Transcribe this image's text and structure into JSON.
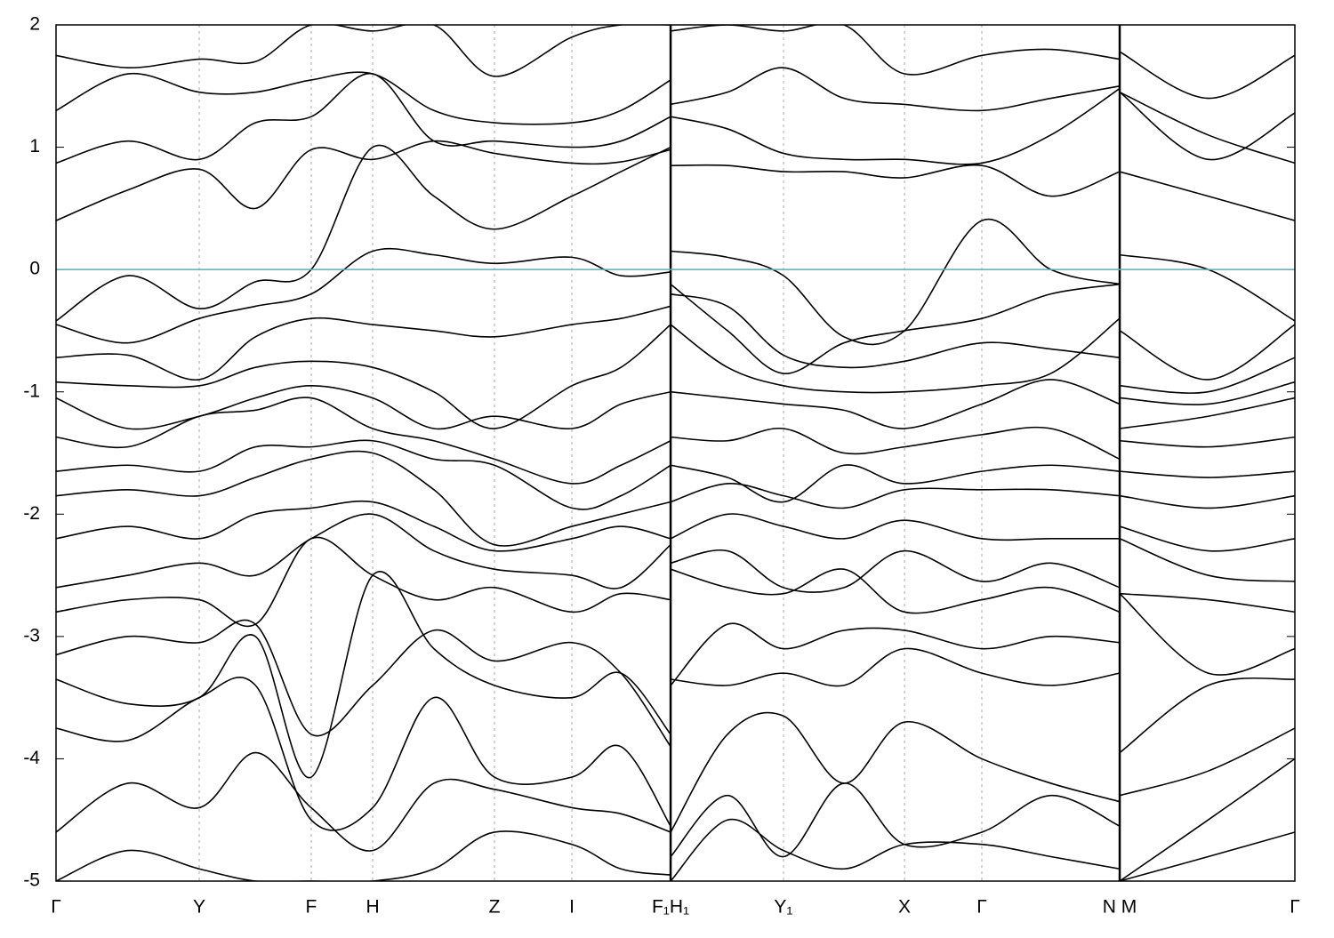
{
  "chart_data": {
    "type": "line",
    "x": [
      0,
      0.058,
      0.1156,
      0.161,
      0.206,
      0.2556,
      0.305,
      0.3539,
      0.4164,
      0.456,
      0.4961,
      0.4961,
      0.542,
      0.5872,
      0.636,
      0.6849,
      0.7473,
      0.803,
      0.8586,
      0.8586,
      0.93,
      1.0
    ],
    "xlim": [
      0,
      1.0
    ],
    "xticks": [
      {
        "value": 0,
        "label": "Γ"
      },
      {
        "value": 0.1156,
        "label": "Y"
      },
      {
        "value": 0.206,
        "label": "F"
      },
      {
        "value": 0.2556,
        "label": "H"
      },
      {
        "value": 0.3539,
        "label": "Z"
      },
      {
        "value": 0.4164,
        "label": "I"
      },
      {
        "value": 0.4961,
        "label": "F₁H₁"
      },
      {
        "value": 0.5872,
        "label": "Y₁"
      },
      {
        "value": 0.6849,
        "label": "X"
      },
      {
        "value": 0.7473,
        "label": "Γ"
      },
      {
        "value": 0.8586,
        "label": "N M"
      },
      {
        "value": 1.0,
        "label": "Γ"
      }
    ],
    "ylim": [
      -5,
      2
    ],
    "yticks": [
      2,
      1,
      0,
      -1,
      -2,
      -3,
      -4,
      -5
    ],
    "xgrid": true,
    "fermi_level": 0,
    "fermi_color": "#5aaec8",
    "color": "#000000",
    "series": [
      {
        "values": [
          1.75,
          1.65,
          1.72,
          1.7,
          2.0,
          1.95,
          2.0,
          1.58,
          1.9,
          2.0,
          2.0,
          1.95,
          2.0,
          1.95,
          2.0,
          1.6,
          1.75,
          1.8,
          1.72,
          1.78,
          1.4,
          1.75
        ]
      },
      {
        "values": [
          1.3,
          1.6,
          1.45,
          1.45,
          1.55,
          1.6,
          1.3,
          1.2,
          1.2,
          1.3,
          1.55,
          1.35,
          1.45,
          1.65,
          1.4,
          1.35,
          1.3,
          1.4,
          1.5,
          1.45,
          0.9,
          1.28
        ]
      },
      {
        "values": [
          0.87,
          1.05,
          0.9,
          1.2,
          1.25,
          1.6,
          1.05,
          1.05,
          1.0,
          1.05,
          1.25,
          1.25,
          1.15,
          0.95,
          0.9,
          0.9,
          0.87,
          1.1,
          1.48,
          1.45,
          1.1,
          0.87
        ]
      },
      {
        "values": [
          0.4,
          0.65,
          0.82,
          0.5,
          0.98,
          0.9,
          1.05,
          0.95,
          0.87,
          0.88,
          0.98,
          0.85,
          0.85,
          0.8,
          0.8,
          0.75,
          0.85,
          0.6,
          0.8,
          0.8,
          0.6,
          0.4
        ]
      },
      {
        "values": [
          -0.42,
          -0.05,
          -0.32,
          -0.1,
          0.0,
          1.0,
          0.6,
          0.33,
          0.6,
          0.8,
          1.0,
          0.15,
          0.1,
          -0.05,
          -0.55,
          -0.5,
          0.4,
          0.0,
          -0.12,
          0.12,
          0.0,
          -0.42
        ]
      },
      {
        "values": [
          -0.45,
          -0.6,
          -0.4,
          -0.3,
          -0.2,
          0.15,
          0.12,
          0.05,
          0.1,
          -0.05,
          -0.02,
          -0.12,
          -0.5,
          -0.85,
          -0.6,
          -0.5,
          -0.4,
          -0.2,
          -0.12,
          -0.5,
          -0.9,
          -0.45
        ]
      },
      {
        "values": [
          -0.72,
          -0.7,
          -0.9,
          -0.55,
          -0.4,
          -0.45,
          -0.5,
          -0.55,
          -0.45,
          -0.4,
          -0.3,
          -0.2,
          -0.3,
          -0.7,
          -0.8,
          -0.75,
          -0.6,
          -0.65,
          -0.72,
          -0.95,
          -1.0,
          -0.72
        ]
      },
      {
        "values": [
          -0.92,
          -0.95,
          -0.95,
          -0.8,
          -0.75,
          -0.8,
          -1.0,
          -1.3,
          -0.95,
          -0.8,
          -0.45,
          -0.45,
          -0.8,
          -0.95,
          -1.0,
          -1.0,
          -0.95,
          -0.85,
          -0.4,
          -1.05,
          -1.1,
          -0.92
        ]
      },
      {
        "values": [
          -1.05,
          -1.3,
          -1.2,
          -1.05,
          -0.95,
          -1.05,
          -1.3,
          -1.2,
          -1.3,
          -1.1,
          -1.0,
          -1.0,
          -1.05,
          -1.1,
          -1.15,
          -1.3,
          -1.1,
          -0.9,
          -1.1,
          -1.3,
          -1.2,
          -1.05
        ]
      },
      {
        "values": [
          -1.37,
          -1.45,
          -1.2,
          -1.15,
          -1.05,
          -1.3,
          -1.4,
          -1.55,
          -1.75,
          -1.6,
          -1.4,
          -1.37,
          -1.4,
          -1.3,
          -1.5,
          -1.45,
          -1.35,
          -1.3,
          -1.55,
          -1.4,
          -1.45,
          -1.37
        ]
      },
      {
        "values": [
          -1.65,
          -1.6,
          -1.65,
          -1.45,
          -1.45,
          -1.4,
          -1.55,
          -1.6,
          -1.95,
          -1.85,
          -1.6,
          -1.6,
          -1.7,
          -1.9,
          -1.6,
          -1.75,
          -1.65,
          -1.6,
          -1.65,
          -1.65,
          -1.7,
          -1.65
        ]
      },
      {
        "values": [
          -1.85,
          -1.8,
          -1.85,
          -1.7,
          -1.55,
          -1.5,
          -1.8,
          -2.25,
          -2.1,
          -2.0,
          -1.9,
          -1.9,
          -1.75,
          -1.85,
          -1.95,
          -1.8,
          -1.8,
          -1.8,
          -1.85,
          -1.85,
          -1.95,
          -1.85
        ]
      },
      {
        "values": [
          -2.2,
          -2.1,
          -2.2,
          -2.0,
          -1.95,
          -1.9,
          -2.1,
          -2.3,
          -2.2,
          -2.1,
          -2.2,
          -2.2,
          -2.0,
          -2.1,
          -2.2,
          -2.05,
          -2.2,
          -2.2,
          -2.2,
          -2.1,
          -2.3,
          -2.2
        ]
      },
      {
        "values": [
          -2.6,
          -2.5,
          -2.4,
          -2.5,
          -2.2,
          -2.0,
          -2.3,
          -2.45,
          -2.5,
          -2.6,
          -2.25,
          -2.4,
          -2.3,
          -2.6,
          -2.6,
          -2.3,
          -2.55,
          -2.4,
          -2.6,
          -2.2,
          -2.5,
          -2.55
        ]
      },
      {
        "values": [
          -2.8,
          -2.7,
          -2.7,
          -2.9,
          -2.2,
          -2.5,
          -2.7,
          -2.6,
          -2.8,
          -2.65,
          -2.7,
          -2.45,
          -2.6,
          -2.65,
          -2.45,
          -2.8,
          -2.7,
          -2.6,
          -2.8,
          -2.65,
          -2.7,
          -2.8
        ]
      },
      {
        "values": [
          -3.15,
          -3.0,
          -3.05,
          -2.9,
          -3.8,
          -3.4,
          -2.95,
          -3.2,
          -3.05,
          -3.3,
          -3.9,
          -3.4,
          -2.9,
          -3.1,
          -2.95,
          -2.95,
          -3.1,
          -3.0,
          -3.05,
          -2.65,
          -3.3,
          -3.1
        ]
      },
      {
        "values": [
          -3.35,
          -3.55,
          -3.5,
          -3.0,
          -4.15,
          -2.5,
          -3.1,
          -3.4,
          -3.5,
          -3.3,
          -3.8,
          -3.35,
          -3.4,
          -3.3,
          -3.4,
          -3.1,
          -3.3,
          -3.4,
          -3.3,
          -3.95,
          -3.4,
          -3.35
        ]
      },
      {
        "values": [
          -3.75,
          -3.85,
          -3.5,
          -3.4,
          -4.5,
          -4.4,
          -3.5,
          -4.15,
          -4.15,
          -3.9,
          -4.55,
          -4.6,
          -3.8,
          -3.65,
          -4.2,
          -3.7,
          -4.0,
          -4.2,
          -4.35,
          -4.3,
          -4.1,
          -3.75
        ]
      },
      {
        "values": [
          -4.6,
          -4.2,
          -4.4,
          -3.95,
          -4.4,
          -4.75,
          -4.2,
          -4.25,
          -4.4,
          -4.45,
          -4.6,
          -4.8,
          -4.3,
          -4.8,
          -4.2,
          -4.7,
          -4.6,
          -4.3,
          -4.55,
          -5.0,
          -4.5,
          -4.0
        ]
      },
      {
        "values": [
          -5.0,
          -4.75,
          -4.9,
          -5.0,
          -5.0,
          -5.0,
          -4.9,
          -4.6,
          -4.7,
          -4.9,
          -4.95,
          -5.0,
          -4.5,
          -4.75,
          -4.9,
          -4.7,
          -4.7,
          -4.8,
          -4.9,
          -5.0,
          -4.8,
          -4.6
        ]
      }
    ]
  }
}
